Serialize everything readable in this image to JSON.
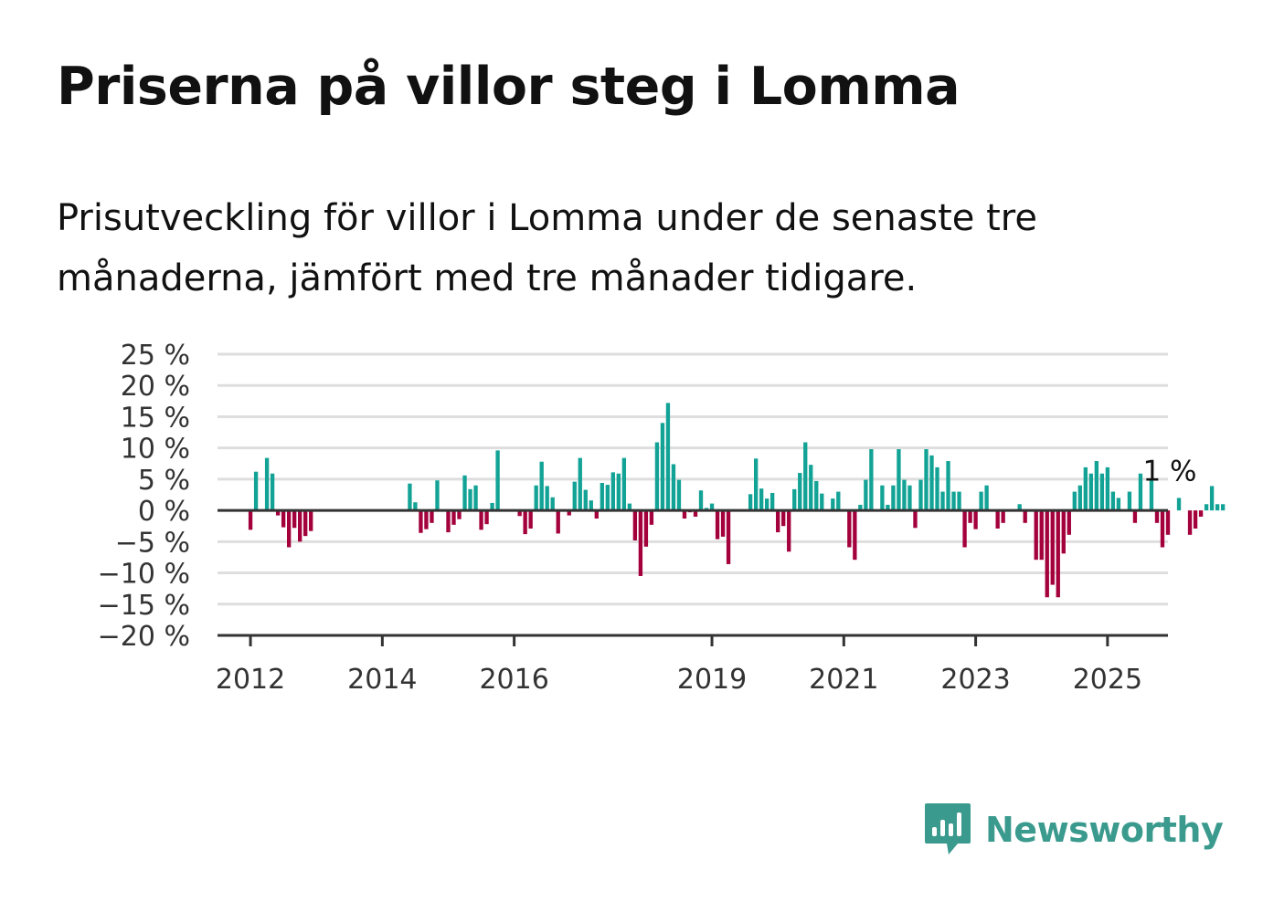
{
  "title": "Priserna på villor steg i Lomma",
  "subtitle": "Prisutveckling för villor i Lomma under de senaste tre månaderna, jämfört med tre månader tidigare.",
  "brand": {
    "name": "Newsworthy",
    "color": "#3b9a8e"
  },
  "colors": {
    "positive": "#13a396",
    "negative": "#a3003c",
    "grid": "#dedede",
    "axis": "#333333"
  },
  "chart_data": {
    "type": "bar",
    "ylim": [
      -20,
      25
    ],
    "y_ticks": [
      25,
      20,
      15,
      10,
      5,
      0,
      -5,
      -10,
      -15,
      -20
    ],
    "y_tick_labels": [
      "25 %",
      "20 %",
      "15 %",
      "10 %",
      "5 %",
      "0 %",
      "−5 %",
      "−10 %",
      "−15 %",
      "−20 %"
    ],
    "x_tick_labels": [
      "2012",
      "2014",
      "2016",
      "2019",
      "2021",
      "2023",
      "2025"
    ],
    "x_tick_years": [
      2012,
      2014,
      2016,
      2019,
      2021,
      2023,
      2025
    ],
    "x_range": [
      "2011-07",
      "2025-12"
    ],
    "start_month": "2012-01",
    "values": [
      -3.1,
      6.2,
      0,
      8.4,
      5.9,
      -0.8,
      -2.7,
      -5.9,
      -2.8,
      -5.0,
      -4.1,
      -3.3,
      0,
      0,
      0,
      0,
      0,
      0,
      0,
      0,
      0,
      0,
      0,
      0,
      0,
      0,
      0,
      0,
      0,
      4.3,
      1.3,
      -3.6,
      -3.0,
      -2.0,
      4.8,
      0,
      -3.5,
      -2.3,
      -1.4,
      5.6,
      3.4,
      4.0,
      -3.1,
      -2.2,
      1.2,
      9.6,
      0,
      0,
      0,
      -0.9,
      -3.8,
      -2.9,
      4.0,
      7.8,
      3.9,
      2.1,
      -3.7,
      0,
      -0.8,
      4.6,
      8.4,
      3.3,
      1.6,
      -1.3,
      4.4,
      4.1,
      6.1,
      5.9,
      8.4,
      1.1,
      -4.8,
      -10.5,
      -5.8,
      -2.3,
      10.9,
      14.0,
      17.2,
      7.4,
      4.9,
      -1.3,
      -0.3,
      -1.0,
      3.2,
      0.4,
      1.1,
      -4.6,
      -4.2,
      -8.6,
      0,
      0,
      0,
      2.6,
      8.3,
      3.5,
      1.9,
      2.8,
      -3.5,
      -2.5,
      -6.6,
      3.4,
      6.0,
      10.9,
      7.3,
      4.7,
      2.7,
      0,
      1.9,
      3.0,
      0,
      -5.9,
      -7.9,
      0.9,
      4.9,
      9.8,
      0,
      4.0,
      0.9,
      4.0,
      9.8,
      4.9,
      4.0,
      -2.8,
      4.9,
      9.8,
      8.8,
      6.9,
      3.0,
      7.9,
      3.0,
      3.0,
      -5.9,
      -2.0,
      -3.0,
      3.0,
      4.0,
      0,
      -2.9,
      -2.0,
      0,
      0,
      1.0,
      -2.0,
      0,
      -7.9,
      -7.9,
      -13.9,
      -11.9,
      -13.9,
      -6.9,
      -3.9,
      3.0,
      4.0,
      6.9,
      5.9,
      7.9,
      5.9,
      6.9,
      3.0,
      2.0,
      0,
      3.0,
      -2.0,
      5.9,
      0,
      4.9,
      -2.0,
      -5.9,
      -3.9,
      0,
      2.0,
      0,
      -3.9,
      -2.9,
      -1.0,
      1.0,
      3.9,
      1.0,
      1.0
    ],
    "annotation": {
      "label": "1 %",
      "month": "2025-10",
      "value": 1
    }
  }
}
